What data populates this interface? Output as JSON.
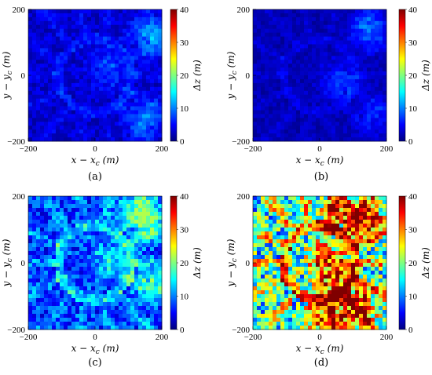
{
  "figure": {
    "colormap": "jet",
    "colormap_stops": [
      "#00007f",
      "#0000ff",
      "#007fff",
      "#00ffff",
      "#7fff7f",
      "#ffff00",
      "#ff7f00",
      "#ff0000",
      "#7f0000"
    ]
  },
  "chart_data": [
    {
      "type": "heatmap",
      "panel_label": "(a)",
      "xlabel": "x − x_c (m)",
      "ylabel": "y − y_c (m)",
      "colorbar_label": "Δz (m)",
      "x_ticks": [
        -200,
        0,
        200
      ],
      "y_ticks": [
        200,
        0,
        -200
      ],
      "xlim": [
        -200,
        200
      ],
      "ylim": [
        -200,
        200
      ],
      "clim": [
        0,
        40
      ],
      "colorbar_ticks": [
        0,
        10,
        20,
        30,
        40
      ],
      "typical_dz": 3,
      "max_dz": 14,
      "hot_regions": [
        {
          "x": 170,
          "y": 120,
          "dz": 12
        },
        {
          "x": 150,
          "y": -130,
          "dz": 10
        },
        {
          "x": 40,
          "y": 20,
          "dz": 8
        }
      ]
    },
    {
      "type": "heatmap",
      "panel_label": "(b)",
      "xlabel": "x − x_c (m)",
      "ylabel": "y − y_c (m)",
      "colorbar_label": "Δz (m)",
      "x_ticks": [
        -200,
        0,
        200
      ],
      "y_ticks": [
        200,
        0,
        -200
      ],
      "xlim": [
        -200,
        200
      ],
      "ylim": [
        -200,
        200
      ],
      "clim": [
        0,
        40
      ],
      "colorbar_ticks": [
        0,
        10,
        20,
        30,
        40
      ],
      "typical_dz": 2,
      "max_dz": 12,
      "hot_regions": [
        {
          "x": 150,
          "y": 140,
          "dz": 10
        },
        {
          "x": 60,
          "y": -20,
          "dz": 8
        },
        {
          "x": 170,
          "y": -120,
          "dz": 7
        }
      ]
    },
    {
      "type": "heatmap",
      "panel_label": "(c)",
      "xlabel": "x − x_c (m)",
      "ylabel": "y − y_c (m)",
      "colorbar_label": "Δz (m)",
      "x_ticks": [
        -200,
        0,
        200
      ],
      "y_ticks": [
        200,
        0,
        -200
      ],
      "xlim": [
        -200,
        200
      ],
      "ylim": [
        -200,
        200
      ],
      "clim": [
        0,
        40
      ],
      "colorbar_ticks": [
        0,
        10,
        20,
        30,
        40
      ],
      "typical_dz": 7,
      "max_dz": 22,
      "hot_regions": [
        {
          "x": 160,
          "y": 120,
          "dz": 20
        },
        {
          "x": 170,
          "y": -60,
          "dz": 18
        },
        {
          "x": 50,
          "y": 10,
          "dz": 16
        },
        {
          "x": 120,
          "y": 170,
          "dz": 15
        }
      ]
    },
    {
      "type": "heatmap",
      "panel_label": "(d)",
      "xlabel": "x − x_c (m)",
      "ylabel": "y − y_c (m)",
      "colorbar_label": "Δz (m)",
      "x_ticks": [
        -200,
        0,
        200
      ],
      "y_ticks": [
        200,
        0,
        -200
      ],
      "xlim": [
        -200,
        200
      ],
      "ylim": [
        -200,
        200
      ],
      "clim": [
        0,
        40
      ],
      "colorbar_ticks": [
        0,
        10,
        20,
        30,
        40
      ],
      "typical_dz": 16,
      "max_dz": 40,
      "hot_regions": [
        {
          "x": 60,
          "y": 160,
          "dz": 36
        },
        {
          "x": 140,
          "y": 120,
          "dz": 38
        },
        {
          "x": 20,
          "y": 20,
          "dz": 34
        },
        {
          "x": 40,
          "y": -60,
          "dz": 36
        },
        {
          "x": 120,
          "y": -130,
          "dz": 38
        },
        {
          "x": 30,
          "y": -170,
          "dz": 34
        }
      ]
    }
  ]
}
